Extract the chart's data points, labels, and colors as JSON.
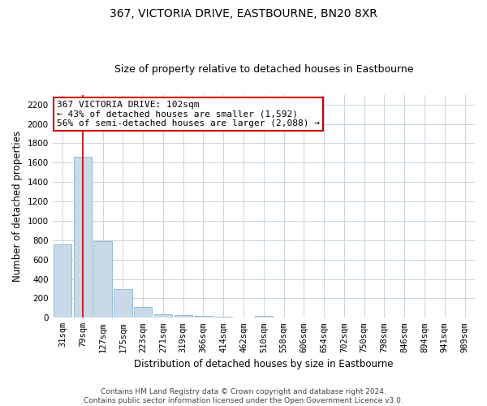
{
  "title": "367, VICTORIA DRIVE, EASTBOURNE, BN20 8XR",
  "subtitle": "Size of property relative to detached houses in Eastbourne",
  "xlabel": "Distribution of detached houses by size in Eastbourne",
  "ylabel": "Number of detached properties",
  "categories": [
    "31sqm",
    "79sqm",
    "127sqm",
    "175sqm",
    "223sqm",
    "271sqm",
    "319sqm",
    "366sqm",
    "414sqm",
    "462sqm",
    "510sqm",
    "558sqm",
    "606sqm",
    "654sqm",
    "702sqm",
    "750sqm",
    "798sqm",
    "846sqm",
    "894sqm",
    "941sqm",
    "989sqm"
  ],
  "values": [
    760,
    1660,
    790,
    295,
    108,
    38,
    28,
    18,
    15,
    0,
    20,
    0,
    0,
    0,
    0,
    0,
    0,
    0,
    0,
    0,
    0
  ],
  "bar_color": "#c9d9e8",
  "bar_edge_color": "#8ab4d0",
  "red_line_x": 1.5,
  "annotation_text": "367 VICTORIA DRIVE: 102sqm\n← 43% of detached houses are smaller (1,592)\n56% of semi-detached houses are larger (2,088) →",
  "annotation_box_color": "#ffffff",
  "annotation_box_edge_color": "#cc0000",
  "ylim": [
    0,
    2300
  ],
  "yticks": [
    0,
    200,
    400,
    600,
    800,
    1000,
    1200,
    1400,
    1600,
    1800,
    2000,
    2200
  ],
  "footer_line1": "Contains HM Land Registry data © Crown copyright and database right 2024.",
  "footer_line2": "Contains public sector information licensed under the Open Government Licence v3.0.",
  "bg_color": "#ffffff",
  "grid_color": "#c8d4e0",
  "title_fontsize": 10,
  "subtitle_fontsize": 9,
  "axis_label_fontsize": 8.5,
  "tick_fontsize": 7.5,
  "annotation_fontsize": 8,
  "footer_fontsize": 6.5,
  "red_line_color": "#cc0000"
}
